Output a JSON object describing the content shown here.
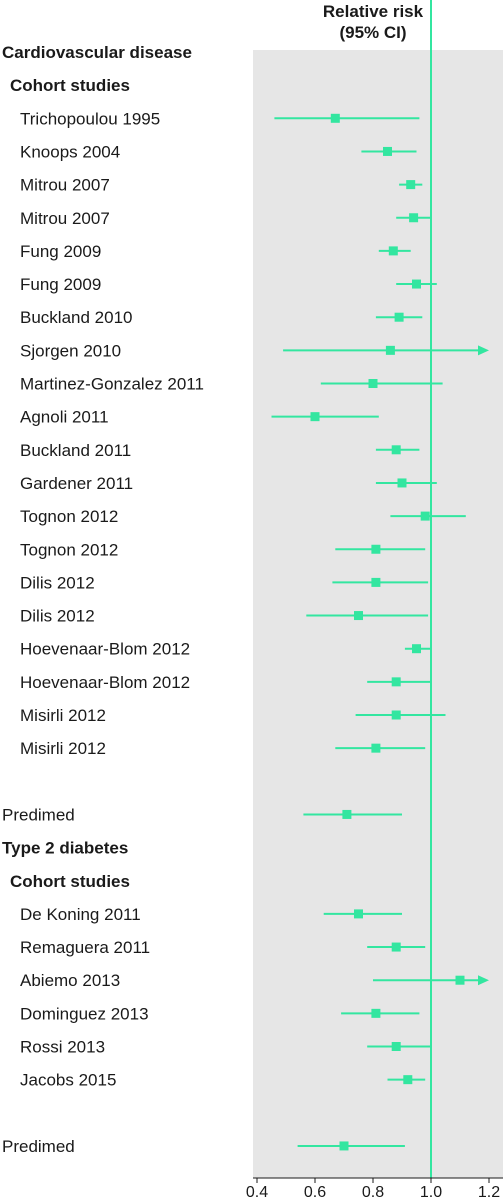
{
  "chart_data": {
    "type": "forest",
    "header": [
      "Relative risk",
      "(95% CI)"
    ],
    "xlim": [
      0.4,
      1.2
    ],
    "xticks": [
      "0.4",
      "0.6",
      "0.8",
      "1.0",
      "1.2"
    ],
    "xtick_values": [
      0.4,
      0.6,
      0.8,
      1.0,
      1.2
    ],
    "reference_line": 1.0,
    "colors": {
      "marker": "#33e6a0",
      "panel": "#e6e6e6"
    },
    "rows": [
      {
        "kind": "section",
        "label": "Cardiovascular disease"
      },
      {
        "kind": "subsection",
        "label": "Cohort studies"
      },
      {
        "kind": "study",
        "label": "Trichopoulou 1995",
        "rr": 0.67,
        "lo": 0.46,
        "hi": 0.96
      },
      {
        "kind": "study",
        "label": "Knoops 2004",
        "rr": 0.85,
        "lo": 0.76,
        "hi": 0.95
      },
      {
        "kind": "study",
        "label": "Mitrou 2007",
        "rr": 0.93,
        "lo": 0.89,
        "hi": 0.97
      },
      {
        "kind": "study",
        "label": "Mitrou 2007",
        "rr": 0.94,
        "lo": 0.88,
        "hi": 1.0
      },
      {
        "kind": "study",
        "label": "Fung 2009",
        "rr": 0.87,
        "lo": 0.82,
        "hi": 0.93
      },
      {
        "kind": "study",
        "label": "Fung 2009",
        "rr": 0.95,
        "lo": 0.88,
        "hi": 1.02
      },
      {
        "kind": "study",
        "label": "Buckland 2010",
        "rr": 0.89,
        "lo": 0.81,
        "hi": 0.97
      },
      {
        "kind": "study",
        "label": "Sjorgen 2010",
        "rr": 0.86,
        "lo": 0.49,
        "hi": 1.2,
        "arrow": true
      },
      {
        "kind": "study",
        "label": "Martinez-Gonzalez 2011",
        "rr": 0.8,
        "lo": 0.62,
        "hi": 1.04
      },
      {
        "kind": "study",
        "label": "Agnoli 2011",
        "rr": 0.6,
        "lo": 0.45,
        "hi": 0.82
      },
      {
        "kind": "study",
        "label": "Buckland 2011",
        "rr": 0.88,
        "lo": 0.81,
        "hi": 0.96
      },
      {
        "kind": "study",
        "label": "Gardener 2011",
        "rr": 0.9,
        "lo": 0.81,
        "hi": 1.02
      },
      {
        "kind": "study",
        "label": "Tognon 2012",
        "rr": 0.98,
        "lo": 0.86,
        "hi": 1.12
      },
      {
        "kind": "study",
        "label": "Tognon 2012",
        "rr": 0.81,
        "lo": 0.67,
        "hi": 0.98
      },
      {
        "kind": "study",
        "label": "Dilis 2012",
        "rr": 0.81,
        "lo": 0.66,
        "hi": 0.99
      },
      {
        "kind": "study",
        "label": "Dilis 2012",
        "rr": 0.75,
        "lo": 0.57,
        "hi": 0.99
      },
      {
        "kind": "study",
        "label": "Hoevenaar-Blom 2012",
        "rr": 0.95,
        "lo": 0.91,
        "hi": 1.0
      },
      {
        "kind": "study",
        "label": "Hoevenaar-Blom 2012",
        "rr": 0.88,
        "lo": 0.78,
        "hi": 1.0
      },
      {
        "kind": "study",
        "label": "Misirli 2012",
        "rr": 0.88,
        "lo": 0.74,
        "hi": 1.05
      },
      {
        "kind": "study",
        "label": "Misirli 2012",
        "rr": 0.81,
        "lo": 0.67,
        "hi": 0.98
      },
      {
        "kind": "gap"
      },
      {
        "kind": "study",
        "label": "Predimed",
        "rr": 0.71,
        "lo": 0.56,
        "hi": 0.9,
        "indent": 0
      },
      {
        "kind": "section",
        "label": "Type 2 diabetes"
      },
      {
        "kind": "subsection",
        "label": "Cohort studies"
      },
      {
        "kind": "study",
        "label": "De Koning 2011",
        "rr": 0.75,
        "lo": 0.63,
        "hi": 0.9
      },
      {
        "kind": "study",
        "label": "Remaguera 2011",
        "rr": 0.88,
        "lo": 0.78,
        "hi": 0.98
      },
      {
        "kind": "study",
        "label": "Abiemo 2013",
        "rr": 1.1,
        "lo": 0.8,
        "hi": 1.2,
        "arrow": true
      },
      {
        "kind": "study",
        "label": "Dominguez 2013",
        "rr": 0.81,
        "lo": 0.69,
        "hi": 0.96
      },
      {
        "kind": "study",
        "label": "Rossi 2013",
        "rr": 0.88,
        "lo": 0.78,
        "hi": 1.0
      },
      {
        "kind": "study",
        "label": "Jacobs 2015",
        "rr": 0.92,
        "lo": 0.85,
        "hi": 0.98
      },
      {
        "kind": "gap"
      },
      {
        "kind": "study",
        "label": "Predimed",
        "rr": 0.7,
        "lo": 0.54,
        "hi": 0.91,
        "indent": 0
      }
    ]
  }
}
